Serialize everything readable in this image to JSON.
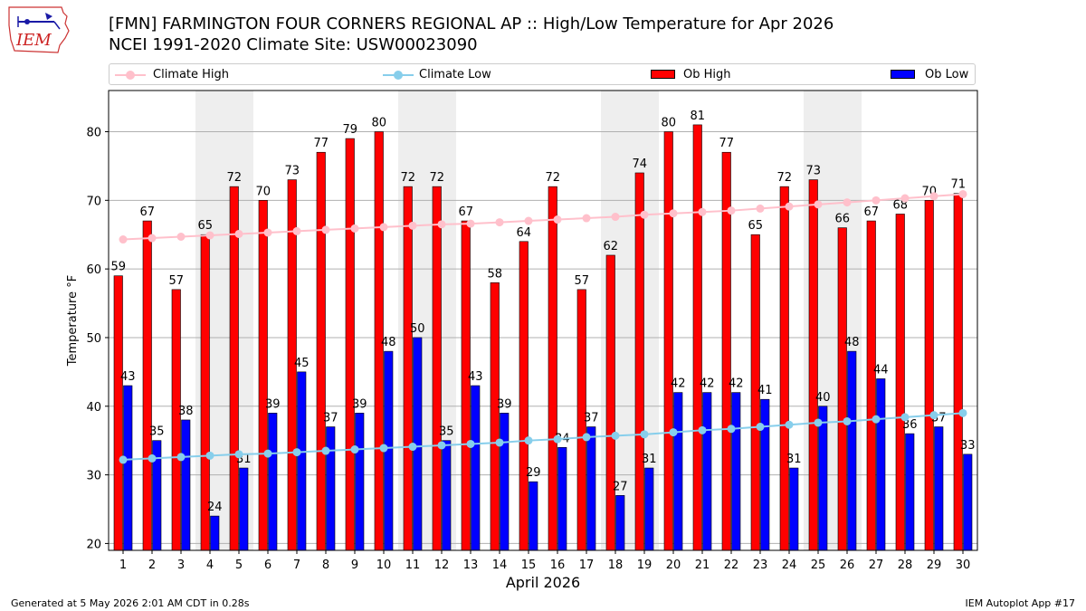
{
  "logo": {
    "text": "IEM"
  },
  "header": {
    "title_line1": "[FMN] FARMINGTON FOUR CORNERS REGIONAL AP :: High/Low Temperature for Apr 2026",
    "title_line2": "NCEI 1991-2020 Climate Site: USW00023090"
  },
  "legend": {
    "climate_high": "Climate High",
    "climate_low": "Climate Low",
    "ob_high": "Ob High",
    "ob_low": "Ob Low"
  },
  "footer": {
    "left": "Generated at 5 May 2026 2:01 AM CDT in 0.28s",
    "right": "IEM Autoplot App #17"
  },
  "colors": {
    "ob_high": "#ff0000",
    "ob_low": "#0000ff",
    "climate_high": "#ffc0cb",
    "climate_low": "#87ceeb",
    "weekend_shade": "#eeeeee",
    "grid": "#b0b0b0"
  },
  "chart_data": {
    "type": "bar",
    "xlabel": "April 2026",
    "ylabel": "Temperature °F",
    "ylim": [
      19,
      86
    ],
    "yticks": [
      20,
      30,
      40,
      50,
      60,
      70,
      80
    ],
    "grid": "horizontal",
    "legend_position": "top",
    "x": [
      1,
      2,
      3,
      4,
      5,
      6,
      7,
      8,
      9,
      10,
      11,
      12,
      13,
      14,
      15,
      16,
      17,
      18,
      19,
      20,
      21,
      22,
      23,
      24,
      25,
      26,
      27,
      28,
      29,
      30
    ],
    "shaded_days": [
      4,
      5,
      11,
      12,
      18,
      19,
      25,
      26
    ],
    "series": [
      {
        "name": "Ob High",
        "kind": "bar",
        "values": [
          59,
          67,
          57,
          65,
          72,
          70,
          73,
          77,
          79,
          80,
          72,
          72,
          67,
          58,
          64,
          72,
          57,
          62,
          74,
          80,
          81,
          77,
          65,
          72,
          73,
          66,
          67,
          68,
          70,
          71
        ]
      },
      {
        "name": "Ob Low",
        "kind": "bar",
        "values": [
          43,
          35,
          38,
          24,
          31,
          39,
          45,
          37,
          39,
          48,
          50,
          35,
          43,
          39,
          29,
          34,
          37,
          27,
          31,
          42,
          42,
          42,
          41,
          31,
          40,
          48,
          44,
          36,
          37,
          33
        ]
      },
      {
        "name": "Climate High",
        "kind": "line",
        "values": [
          64.3,
          64.5,
          64.7,
          64.9,
          65.1,
          65.3,
          65.5,
          65.7,
          65.9,
          66.1,
          66.3,
          66.5,
          66.6,
          66.8,
          67.0,
          67.2,
          67.4,
          67.6,
          67.9,
          68.1,
          68.3,
          68.5,
          68.8,
          69.1,
          69.4,
          69.7,
          70.0,
          70.3,
          70.6,
          70.9
        ]
      },
      {
        "name": "Climate Low",
        "kind": "line",
        "values": [
          32.2,
          32.4,
          32.6,
          32.8,
          33.0,
          33.1,
          33.3,
          33.5,
          33.7,
          33.9,
          34.1,
          34.3,
          34.5,
          34.7,
          35.0,
          35.2,
          35.5,
          35.7,
          35.9,
          36.2,
          36.5,
          36.7,
          37.0,
          37.3,
          37.6,
          37.8,
          38.1,
          38.4,
          38.7,
          39.0
        ]
      }
    ]
  }
}
